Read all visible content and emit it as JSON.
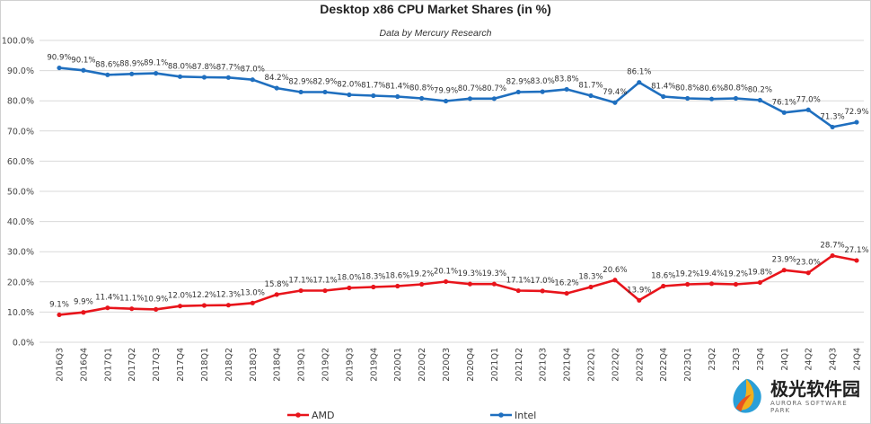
{
  "chart_data": {
    "type": "line",
    "title": "Desktop x86 CPU Market Shares (in %)",
    "subtitle": "Data by Mercury Research",
    "xlabel": "",
    "ylabel": "",
    "ylim": [
      0,
      100
    ],
    "y_ticks": [
      "0.0%",
      "10.0%",
      "20.0%",
      "30.0%",
      "40.0%",
      "50.0%",
      "60.0%",
      "70.0%",
      "80.0%",
      "90.0%",
      "100.0%"
    ],
    "grid": true,
    "legend_position": "bottom",
    "categories": [
      "2016Q3",
      "2016Q4",
      "2017Q1",
      "2017Q2",
      "2017Q3",
      "2017Q4",
      "2018Q1",
      "2018Q2",
      "2018Q3",
      "2018Q4",
      "2019Q1",
      "2019Q2",
      "2019Q3",
      "2019Q4",
      "2020Q1",
      "2020Q2",
      "2020Q3",
      "2020Q4",
      "2021Q1",
      "2021Q2",
      "2021Q3",
      "2021Q4",
      "2022Q1",
      "2022Q2",
      "2022Q3",
      "2022Q4",
      "2023Q1",
      "23Q2",
      "23Q3",
      "23Q4",
      "24Q1",
      "24Q2",
      "24Q3",
      "24Q4"
    ],
    "series": [
      {
        "name": "AMD",
        "color": "#e8141b",
        "values": [
          9.1,
          9.9,
          11.4,
          11.1,
          10.9,
          12.0,
          12.2,
          12.3,
          13.0,
          15.8,
          17.1,
          17.1,
          18.0,
          18.3,
          18.6,
          19.2,
          20.1,
          19.3,
          19.3,
          17.1,
          17.0,
          16.2,
          18.3,
          20.6,
          13.9,
          18.6,
          19.2,
          19.4,
          19.2,
          19.8,
          23.9,
          23.0,
          28.7,
          27.1
        ],
        "labels": [
          "9.1%",
          "9.9%",
          "11.4%",
          "11.1%",
          "10.9%",
          "12.0%",
          "12.2%",
          "12.3%",
          "13.0%",
          "15.8%",
          "17.1%",
          "17.1%",
          "18.0%",
          "18.3%",
          "18.6%",
          "19.2%",
          "20.1%",
          "19.3%",
          "19.3%",
          "17.1%",
          "17.0%",
          "16.2%",
          "18.3%",
          "20.6%",
          "13.9%",
          "18.6%",
          "19.2%",
          "19.4%",
          "19.2%",
          "19.8%",
          "23.9%",
          "23.0%",
          "28.7%",
          "27.1%"
        ]
      },
      {
        "name": "Intel",
        "color": "#1f6fbf",
        "values": [
          90.9,
          90.1,
          88.6,
          88.9,
          89.1,
          88.0,
          87.8,
          87.7,
          87.0,
          84.2,
          82.9,
          82.9,
          82.0,
          81.7,
          81.4,
          80.8,
          79.9,
          80.7,
          80.7,
          82.9,
          83.0,
          83.8,
          81.7,
          79.4,
          86.1,
          81.4,
          80.8,
          80.6,
          80.8,
          80.2,
          76.1,
          77.0,
          71.3,
          72.9
        ],
        "labels": [
          "90.9%",
          "90.1%",
          "88.6%",
          "88.9%",
          "89.1%",
          "88.0%",
          "87.8%",
          "87.7%",
          "87.0%",
          "84.2%",
          "82.9%",
          "82.9%",
          "82.0%",
          "81.7%",
          "81.4%",
          "80.8%",
          "79.9%",
          "80.7%",
          "80.7%",
          "82.9%",
          "83.0%",
          "83.8%",
          "81.7%",
          "79.4%",
          "86.1%",
          "81.4%",
          "80.8%",
          "80.6%",
          "80.8%",
          "80.2%",
          "76.1%",
          "77.0%",
          "71.3%",
          "72.9%"
        ]
      }
    ]
  },
  "watermark": {
    "main": "极光软件园",
    "sub": "AURORA SOFTWARE PARK"
  }
}
